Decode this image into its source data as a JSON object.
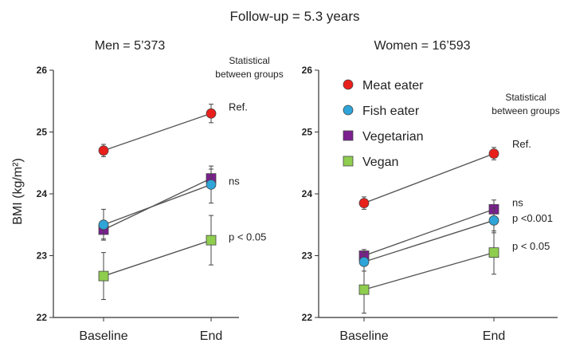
{
  "figure_title": "Follow-up = 5.3 years",
  "y_axis_label": "BMI (kg/m²)",
  "colors": {
    "meat": "#e8201c",
    "fish": "#2ea4d8",
    "vegetarian": "#7b1f8f",
    "vegan": "#8fcd4f",
    "line": "#555555",
    "axis": "#333333"
  },
  "chart_data": [
    {
      "type": "line",
      "title": "Men = 5’373",
      "categories": [
        "Baseline",
        "End"
      ],
      "ylim": [
        22,
        26
      ],
      "yticks": [
        "22",
        "23",
        "24",
        "25",
        "26"
      ],
      "ylabel": "BMI (kg/m²)",
      "stat_header": [
        "Statistical",
        "between groups"
      ],
      "series": [
        {
          "key": "meat",
          "marker": "circle",
          "values": [
            24.7,
            25.3
          ],
          "err": [
            0.1,
            0.15
          ]
        },
        {
          "key": "fish",
          "marker": "circle",
          "values": [
            23.5,
            24.15
          ],
          "err": [
            0.25,
            0.3
          ]
        },
        {
          "key": "vegetarian",
          "marker": "square",
          "values": [
            23.42,
            24.25
          ],
          "err": [
            0.15,
            0.15
          ]
        },
        {
          "key": "vegan",
          "marker": "square",
          "values": [
            22.67,
            23.25
          ],
          "err": [
            0.38,
            0.4
          ]
        }
      ],
      "annotations": [
        {
          "text": "Ref.",
          "y": 25.4
        },
        {
          "text": "ns",
          "y": 24.2
        },
        {
          "text": "p < 0.05",
          "y": 23.3
        }
      ]
    },
    {
      "type": "line",
      "title": "Women = 16’593",
      "categories": [
        "Baseline",
        "End"
      ],
      "ylim": [
        22,
        26
      ],
      "yticks": [
        "22",
        "23",
        "24",
        "25",
        "26"
      ],
      "stat_header": [
        "Statistical",
        "between groups"
      ],
      "legend": [
        {
          "key": "meat",
          "marker": "circle",
          "label": "Meat eater"
        },
        {
          "key": "fish",
          "marker": "circle",
          "label": "Fish eater"
        },
        {
          "key": "vegetarian",
          "marker": "square",
          "label": "Vegetarian"
        },
        {
          "key": "vegan",
          "marker": "square",
          "label": "Vegan"
        }
      ],
      "series": [
        {
          "key": "meat",
          "marker": "circle",
          "values": [
            23.85,
            24.65
          ],
          "err": [
            0.1,
            0.1
          ]
        },
        {
          "key": "fish",
          "marker": "circle",
          "values": [
            22.9,
            23.57
          ],
          "err": [
            0.15,
            0.2
          ]
        },
        {
          "key": "vegetarian",
          "marker": "square",
          "values": [
            23.0,
            23.75
          ],
          "err": [
            0.1,
            0.15
          ]
        },
        {
          "key": "vegan",
          "marker": "square",
          "values": [
            22.45,
            23.05
          ],
          "err": [
            0.38,
            0.35
          ]
        }
      ],
      "annotations": [
        {
          "text": "Ref.",
          "y": 24.8
        },
        {
          "text": "ns",
          "y": 23.85
        },
        {
          "text": "p <0.001",
          "y": 23.6
        },
        {
          "text": "p < 0.05",
          "y": 23.15
        }
      ]
    }
  ]
}
